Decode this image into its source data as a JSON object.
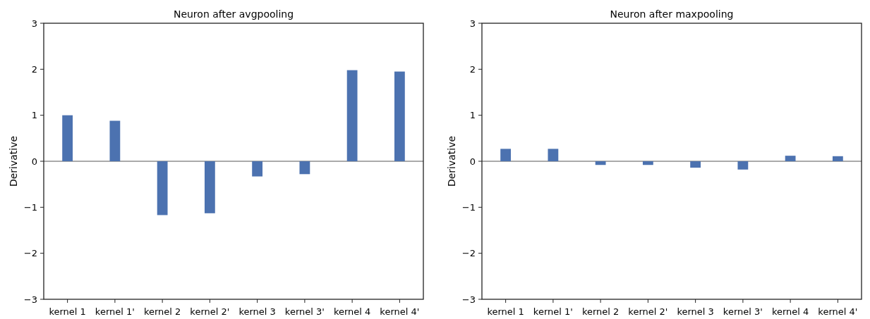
{
  "chart_data": [
    {
      "type": "bar",
      "title": "Neuron after avgpooling",
      "ylabel": "Derivative",
      "categories": [
        "kernel 1",
        "kernel 1'",
        "kernel 2",
        "kernel 2'",
        "kernel 3",
        "kernel 3'",
        "kernel 4",
        "kernel 4'"
      ],
      "values": [
        1.0,
        0.88,
        -1.17,
        -1.13,
        -0.33,
        -0.28,
        1.98,
        1.95
      ],
      "color": "#4c72b0",
      "ylim": [
        -3,
        3
      ],
      "yticks": [
        -3,
        -2,
        -1,
        0,
        1,
        2,
        3
      ],
      "ref_lines": [
        {
          "axis": "y",
          "value": 0,
          "color": "#aaaaaa"
        }
      ],
      "grid": false
    },
    {
      "type": "bar",
      "title": "Neuron after maxpooling",
      "ylabel": "Derivative",
      "categories": [
        "kernel 1",
        "kernel 1'",
        "kernel 2",
        "kernel 2'",
        "kernel 3",
        "kernel 3'",
        "kernel 4",
        "kernel 4'"
      ],
      "values": [
        0.27,
        0.27,
        -0.08,
        -0.08,
        -0.14,
        -0.18,
        0.12,
        0.11
      ],
      "color": "#4c72b0",
      "ylim": [
        -3,
        3
      ],
      "yticks": [
        -3,
        -2,
        -1,
        0,
        1,
        2,
        3
      ],
      "ref_lines": [
        {
          "axis": "y",
          "value": 0,
          "color": "#aaaaaa"
        }
      ],
      "grid": false
    }
  ]
}
